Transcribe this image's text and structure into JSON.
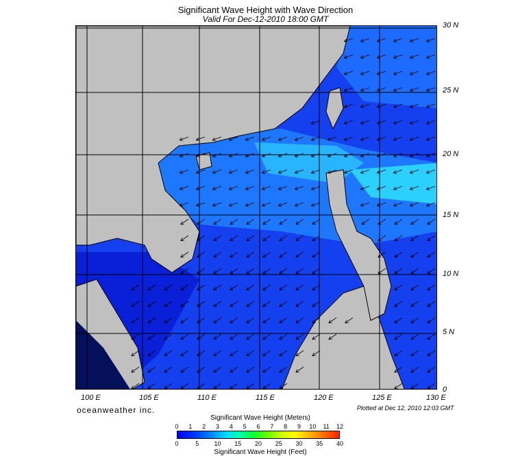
{
  "title": "Significant Wave Height with Wave Direction",
  "subtitle": "Valid For Dec-12-2010 18:00 GMT",
  "lat_labels": [
    "30 N",
    "25 N",
    "20 N",
    "15 N",
    "10 N",
    "5 N",
    "0"
  ],
  "lon_labels": [
    "100 E",
    "105 E",
    "110 E",
    "115 E",
    "120 E",
    "125 E",
    "130 E"
  ],
  "brand": "oceanweather inc.",
  "plotted": "Plotted at Dec 12, 2010 12:03 GMT",
  "colorbar": {
    "title_meters": "Significant Wave Height (Meters)",
    "title_feet": "Significant Wave Height (Feet)",
    "meters_ticks": [
      "0",
      "1",
      "2",
      "3",
      "4",
      "5",
      "6",
      "7",
      "8",
      "9",
      "10",
      "11",
      "12"
    ],
    "feet_ticks": [
      "0",
      "5",
      "10",
      "15",
      "20",
      "25",
      "30",
      "35",
      "40"
    ]
  },
  "colors": {
    "land": "#c0c0c0",
    "sea_low": "#0a1ee0",
    "sea_mid": "#1e6cff",
    "sea_high": "#28c8ff",
    "grid": "#000000"
  }
}
